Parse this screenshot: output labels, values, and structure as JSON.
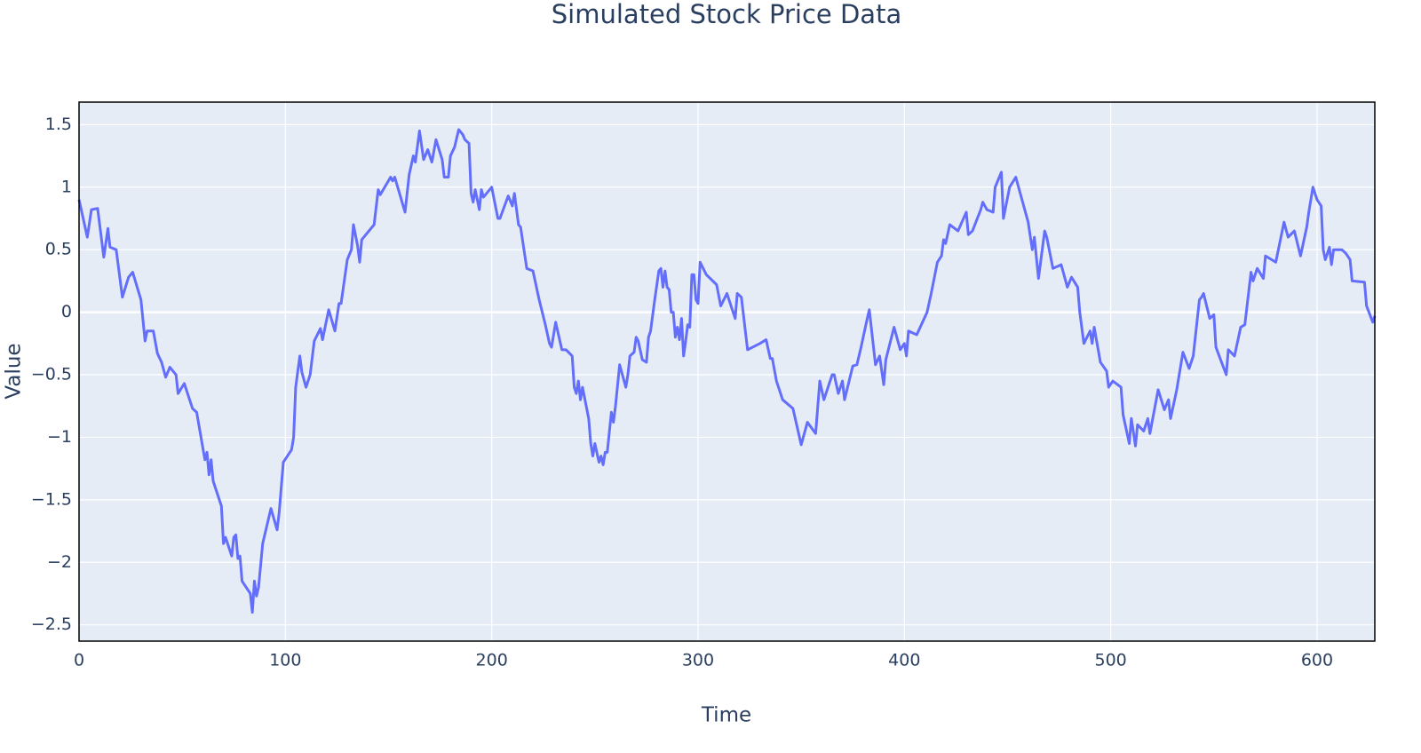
{
  "chart_data": {
    "type": "line",
    "title": "Simulated Stock Price Data",
    "x_label": "Time",
    "y_label": "Value",
    "color": "#636efa",
    "grid": true,
    "xlim": [
      0,
      628
    ],
    "ylim": [
      -2.63,
      1.68
    ],
    "xticks": [
      0,
      100,
      200,
      300,
      400,
      500,
      600
    ],
    "yticks": [
      {
        "value": -2.5,
        "label": "−2.5"
      },
      {
        "value": -2,
        "label": "−2"
      },
      {
        "value": -1.5,
        "label": "−1.5"
      },
      {
        "value": -1,
        "label": "−1"
      },
      {
        "value": -0.5,
        "label": "−0.5"
      },
      0,
      0.5,
      1,
      1.5
    ],
    "x": [
      0,
      4,
      6,
      9,
      12,
      14,
      15,
      18,
      21,
      24,
      26,
      30,
      32,
      33,
      36,
      38,
      40,
      42,
      44,
      47,
      48,
      51,
      55,
      57,
      61,
      62,
      63,
      64,
      65,
      69,
      70,
      71,
      74,
      75,
      76,
      77,
      78,
      79,
      83,
      84,
      85,
      86,
      87,
      89,
      93,
      96,
      97,
      99,
      103,
      104,
      105,
      107,
      108,
      110,
      112,
      114,
      117,
      118,
      121,
      124,
      126,
      127,
      130,
      132,
      133,
      135,
      136,
      137,
      143,
      145,
      146,
      151,
      152,
      153,
      158,
      160,
      162,
      163,
      165,
      167,
      169,
      171,
      173,
      176,
      177,
      179,
      180,
      182,
      184,
      186,
      187,
      189,
      190,
      191,
      192,
      194,
      195,
      196,
      200,
      203,
      204,
      208,
      210,
      211,
      213,
      214,
      217,
      220,
      223,
      226,
      228,
      229,
      231,
      234,
      236,
      239,
      240,
      241,
      242,
      243,
      244,
      247,
      248,
      249,
      250,
      252,
      253,
      254,
      255,
      256,
      258,
      259,
      260,
      262,
      265,
      266,
      267,
      269,
      270,
      271,
      273,
      275,
      276,
      277,
      279,
      281,
      282,
      283,
      284,
      285,
      286,
      287,
      288,
      289,
      290,
      291,
      292,
      293,
      294,
      295,
      296,
      297,
      298,
      299,
      300,
      301,
      304,
      309,
      311,
      314,
      318,
      319,
      321,
      324,
      330,
      333,
      335,
      336,
      338,
      341,
      346,
      350,
      353,
      357,
      359,
      361,
      365,
      366,
      368,
      370,
      371,
      375,
      377,
      379,
      382,
      383,
      386,
      388,
      390,
      391,
      395,
      398,
      400,
      401,
      402,
      406,
      411,
      413,
      416,
      418,
      419,
      420,
      422,
      426,
      430,
      431,
      433,
      437,
      438,
      440,
      443,
      444,
      447,
      448,
      451,
      454,
      457,
      460,
      462,
      463,
      465,
      468,
      469,
      472,
      476,
      479,
      481,
      484,
      485,
      487,
      490,
      491,
      492,
      495,
      498,
      499,
      501,
      505,
      506,
      509,
      510,
      512,
      513,
      516,
      518,
      519,
      523,
      526,
      528,
      529,
      532,
      535,
      538,
      540,
      543,
      544,
      545,
      548,
      550,
      551,
      556,
      557,
      560,
      563,
      565,
      568,
      569,
      571,
      574,
      575,
      580,
      584,
      586,
      589,
      592,
      595,
      596,
      598,
      600,
      602,
      603,
      604,
      606,
      607,
      608,
      612,
      614,
      616,
      617,
      623,
      624,
      627,
      628
    ],
    "values": [
      0.9,
      0.6,
      0.82,
      0.83,
      0.44,
      0.67,
      0.52,
      0.5,
      0.12,
      0.28,
      0.32,
      0.1,
      -0.23,
      -0.15,
      -0.15,
      -0.33,
      -0.4,
      -0.52,
      -0.44,
      -0.5,
      -0.65,
      -0.57,
      -0.77,
      -0.8,
      -1.18,
      -1.12,
      -1.3,
      -1.18,
      -1.35,
      -1.55,
      -1.85,
      -1.8,
      -1.95,
      -1.8,
      -1.78,
      -1.97,
      -1.95,
      -2.15,
      -2.25,
      -2.4,
      -2.15,
      -2.27,
      -2.2,
      -1.85,
      -1.57,
      -1.74,
      -1.6,
      -1.2,
      -1.1,
      -1.0,
      -0.6,
      -0.35,
      -0.48,
      -0.6,
      -0.5,
      -0.23,
      -0.13,
      -0.22,
      0.02,
      -0.15,
      0.07,
      0.07,
      0.42,
      0.5,
      0.7,
      0.53,
      0.4,
      0.58,
      0.7,
      0.98,
      0.94,
      1.08,
      1.05,
      1.08,
      0.8,
      1.1,
      1.25,
      1.2,
      1.45,
      1.22,
      1.3,
      1.2,
      1.38,
      1.22,
      1.08,
      1.08,
      1.25,
      1.32,
      1.46,
      1.42,
      1.38,
      1.35,
      0.95,
      0.88,
      0.98,
      0.82,
      0.98,
      0.92,
      1.0,
      0.75,
      0.75,
      0.93,
      0.85,
      0.95,
      0.7,
      0.68,
      0.35,
      0.33,
      0.1,
      -0.1,
      -0.25,
      -0.28,
      -0.08,
      -0.3,
      -0.3,
      -0.35,
      -0.6,
      -0.65,
      -0.55,
      -0.7,
      -0.6,
      -0.85,
      -1.05,
      -1.15,
      -1.05,
      -1.2,
      -1.15,
      -1.22,
      -1.12,
      -1.12,
      -0.8,
      -0.88,
      -0.75,
      -0.42,
      -0.6,
      -0.5,
      -0.35,
      -0.32,
      -0.2,
      -0.23,
      -0.38,
      -0.4,
      -0.2,
      -0.15,
      0.1,
      0.33,
      0.35,
      0.2,
      0.33,
      0.2,
      0.18,
      0.0,
      0.0,
      -0.2,
      -0.12,
      -0.22,
      -0.05,
      -0.35,
      -0.23,
      -0.1,
      -0.12,
      0.3,
      0.3,
      0.1,
      0.07,
      0.4,
      0.3,
      0.22,
      0.05,
      0.15,
      -0.05,
      0.15,
      0.12,
      -0.3,
      -0.25,
      -0.22,
      -0.37,
      -0.37,
      -0.55,
      -0.7,
      -0.77,
      -1.06,
      -0.88,
      -0.97,
      -0.55,
      -0.7,
      -0.5,
      -0.5,
      -0.65,
      -0.55,
      -0.7,
      -0.43,
      -0.42,
      -0.28,
      -0.05,
      0.02,
      -0.42,
      -0.35,
      -0.58,
      -0.38,
      -0.12,
      -0.3,
      -0.25,
      -0.35,
      -0.15,
      -0.18,
      0.0,
      0.15,
      0.4,
      0.45,
      0.58,
      0.55,
      0.7,
      0.65,
      0.8,
      0.62,
      0.65,
      0.82,
      0.88,
      0.82,
      0.8,
      1.0,
      1.12,
      0.75,
      1.0,
      1.08,
      0.9,
      0.72,
      0.5,
      0.6,
      0.27,
      0.65,
      0.6,
      0.35,
      0.38,
      0.2,
      0.28,
      0.2,
      0.0,
      -0.25,
      -0.15,
      -0.25,
      -0.12,
      -0.4,
      -0.47,
      -0.6,
      -0.55,
      -0.6,
      -0.82,
      -1.05,
      -0.85,
      -1.07,
      -0.9,
      -0.95,
      -0.85,
      -0.97,
      -0.62,
      -0.78,
      -0.7,
      -0.85,
      -0.62,
      -0.32,
      -0.45,
      -0.35,
      0.1,
      0.12,
      0.15,
      -0.05,
      -0.02,
      -0.28,
      -0.5,
      -0.3,
      -0.35,
      -0.12,
      -0.1,
      0.32,
      0.25,
      0.35,
      0.27,
      0.45,
      0.4,
      0.72,
      0.6,
      0.65,
      0.45,
      0.68,
      0.8,
      1.0,
      0.9,
      0.85,
      0.5,
      0.42,
      0.52,
      0.38,
      0.5,
      0.5,
      0.47,
      0.42,
      0.25,
      0.24,
      0.05,
      -0.08,
      -0.03
    ]
  }
}
